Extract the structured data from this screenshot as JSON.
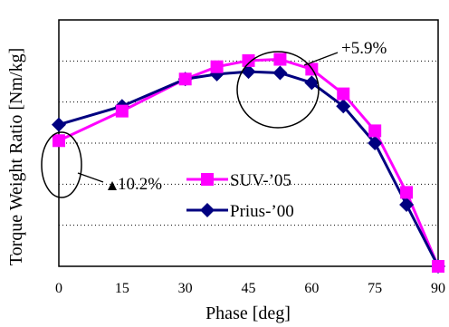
{
  "chart_data": {
    "type": "line",
    "xlabel": "Phase [deg]",
    "ylabel": "Torque Weight Ratio [Nm/kg]",
    "xlim": [
      0,
      90
    ],
    "x_ticks": [
      "0",
      "15",
      "30",
      "45",
      "60",
      "75",
      "90"
    ],
    "y_tick_labels_shown": false,
    "grid": "dotted horizontal",
    "legend": "center-right",
    "series": [
      {
        "name": "SUV-’05",
        "color": "#ff00ff",
        "marker": "square",
        "x": [
          0,
          15,
          30,
          37.5,
          45,
          52.5,
          60,
          67.5,
          75,
          82.5,
          90
        ],
        "y": [
          0.51,
          0.63,
          0.76,
          0.81,
          0.835,
          0.84,
          0.8,
          0.7,
          0.55,
          0.3,
          0
        ]
      },
      {
        "name": "Prius-’00",
        "color": "#000080",
        "marker": "diamond",
        "x": [
          0,
          15,
          30,
          37.5,
          45,
          52.5,
          60,
          67.5,
          75,
          82.5,
          90
        ],
        "y": [
          0.575,
          0.65,
          0.76,
          0.78,
          0.79,
          0.785,
          0.745,
          0.65,
          0.5,
          0.25,
          0
        ]
      }
    ],
    "annotations": [
      {
        "text": "+5.9%"
      },
      {
        "text": "10.2%",
        "icon": "triangle-icon"
      }
    ]
  }
}
